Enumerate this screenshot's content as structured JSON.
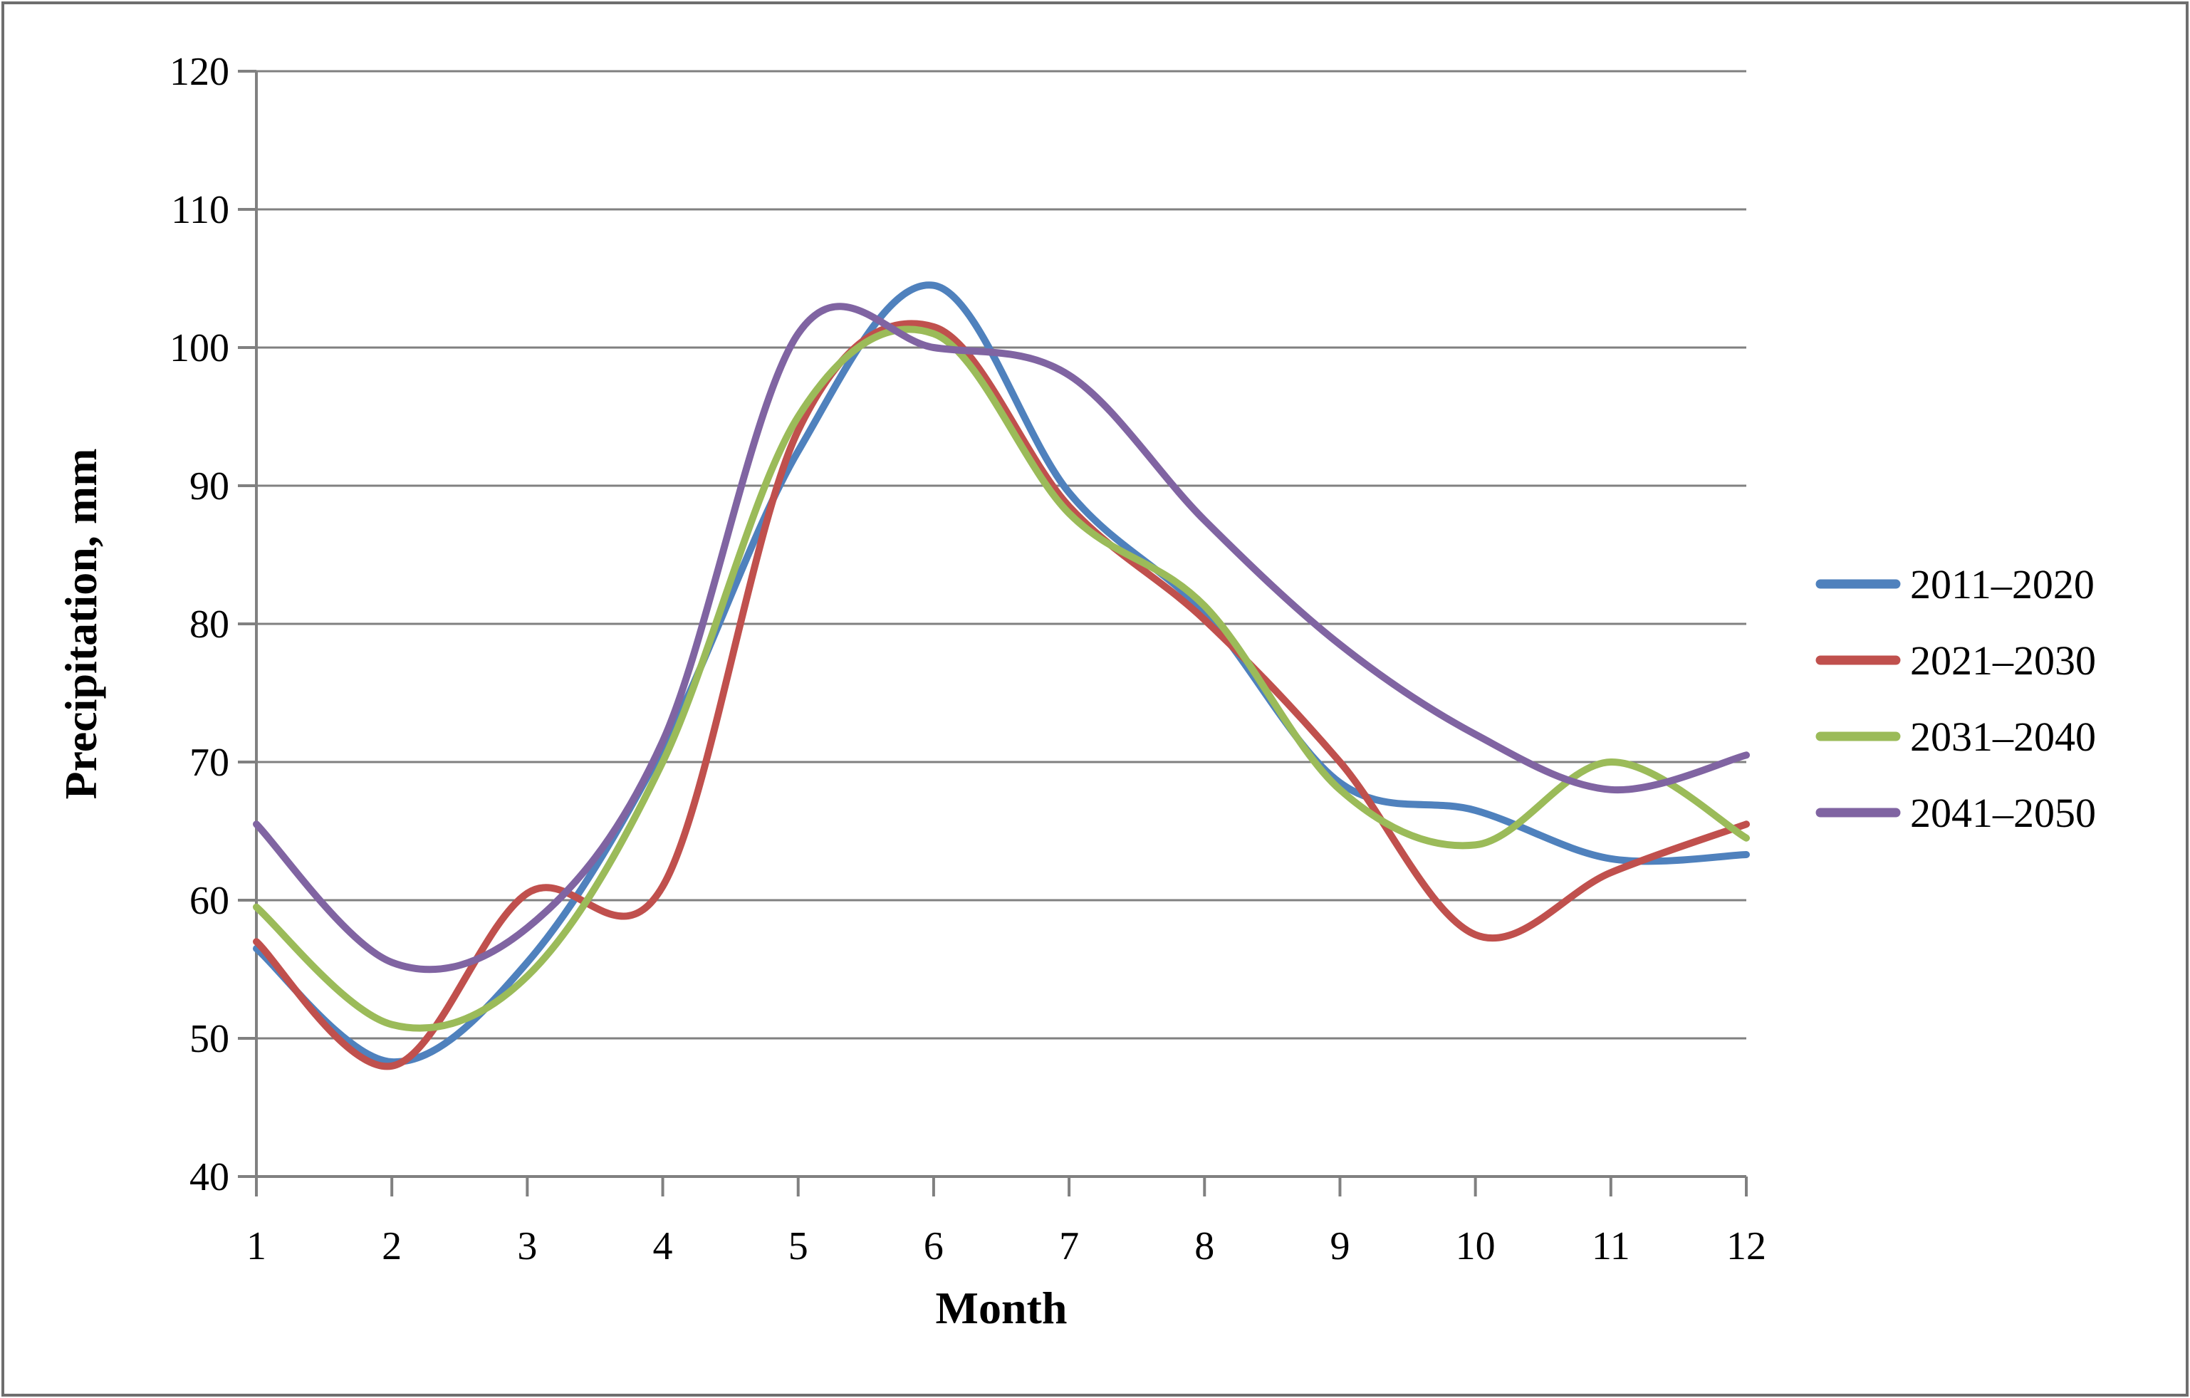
{
  "figure": {
    "background": "#ffffff",
    "border_color": "#6e6e6e",
    "gridline_color": "#808080",
    "axis_color": "#808080",
    "text_color": "#000000"
  },
  "chart_data": {
    "type": "line",
    "title": "",
    "xlabel": "Month",
    "ylabel": "Precipitation, mm",
    "x": [
      1,
      2,
      3,
      4,
      5,
      6,
      7,
      8,
      9,
      10,
      11,
      12
    ],
    "x_tick_labels": [
      "1",
      "2",
      "3",
      "4",
      "5",
      "6",
      "7",
      "8",
      "9",
      "10",
      "11",
      "12"
    ],
    "xlim": [
      1,
      12
    ],
    "ylim": [
      40,
      120
    ],
    "y_ticks": [
      40,
      50,
      60,
      70,
      80,
      90,
      100,
      110,
      120
    ],
    "grid": "horizontal",
    "smooth": true,
    "legend_position": "right",
    "series": [
      {
        "name": "2011–2020",
        "color": "#4F81BD",
        "values": [
          56.5,
          48.3,
          55.5,
          71.0,
          92.5,
          104.5,
          89.5,
          80.8,
          68.5,
          66.5,
          63.0,
          63.3
        ]
      },
      {
        "name": "2021–2030",
        "color": "#C0504D",
        "values": [
          57.0,
          48.0,
          60.5,
          61.0,
          94.0,
          101.5,
          88.5,
          80.3,
          70.0,
          57.5,
          62.0,
          65.5
        ]
      },
      {
        "name": "2031–2040",
        "color": "#9BBB59",
        "values": [
          59.5,
          51.0,
          54.5,
          70.0,
          95.0,
          101.0,
          88.0,
          81.3,
          68.0,
          64.0,
          70.0,
          64.5
        ]
      },
      {
        "name": "2041–2050",
        "color": "#8064A2",
        "values": [
          65.5,
          55.5,
          58.0,
          71.5,
          101.0,
          100.0,
          98.0,
          87.5,
          78.5,
          72.0,
          68.0,
          70.5
        ]
      }
    ]
  }
}
